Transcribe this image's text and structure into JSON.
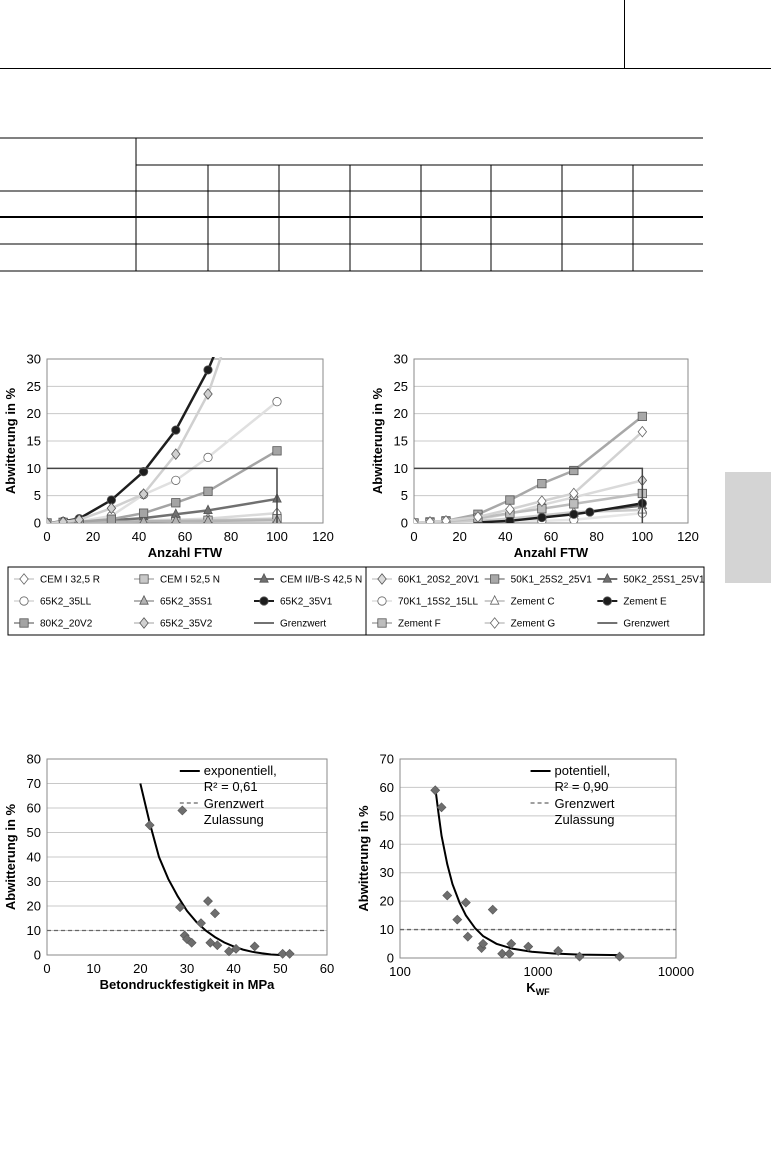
{
  "charts": [
    {
      "type": "line",
      "xlabel": "Anzahl FTW",
      "ylabel": "Abwitterung in %",
      "xlim": [
        0,
        120
      ],
      "ylim": [
        0,
        30
      ],
      "xticks": [
        0,
        20,
        40,
        60,
        80,
        100,
        120
      ],
      "yticks": [
        0,
        5,
        10,
        15,
        20,
        25,
        30
      ],
      "series": [
        {
          "name": "CEM I 32,5 R",
          "marker": "diamond-open",
          "color": "#dadada",
          "x": [
            0,
            7,
            14,
            28,
            42,
            56,
            70,
            100
          ],
          "y": [
            0,
            0.1,
            0.2,
            0.3,
            0.5,
            0.6,
            0.8,
            1.8
          ]
        },
        {
          "name": "CEM I 52,5 N",
          "marker": "square",
          "color": "#c8c8c8",
          "x": [
            0,
            7,
            14,
            28,
            42,
            56,
            70,
            100
          ],
          "y": [
            0,
            0.1,
            0.1,
            0.2,
            0.3,
            0.4,
            0.5,
            0.8
          ]
        },
        {
          "name": "CEM II/B-S 42,5 N",
          "marker": "triangle",
          "color": "#707070",
          "x": [
            0,
            7,
            14,
            28,
            42,
            56,
            70,
            100
          ],
          "y": [
            0,
            0.1,
            0.2,
            0.5,
            0.9,
            1.6,
            2.3,
            4.4
          ]
        },
        {
          "name": "65K2_35LL",
          "marker": "circle-open",
          "color": "#e0e0e0",
          "x": [
            0,
            7,
            14,
            28,
            42,
            56,
            70,
            100
          ],
          "y": [
            0,
            0.2,
            0.3,
            1.3,
            5.2,
            7.8,
            12,
            22.2
          ]
        },
        {
          "name": "65K2_35S1",
          "marker": "triangle",
          "color": "#b4b4b4",
          "x": [
            0,
            7,
            14,
            28,
            42,
            56,
            70,
            100
          ],
          "y": [
            0,
            0.1,
            0.1,
            0.2,
            0.3,
            0.4,
            0.4,
            0.5
          ]
        },
        {
          "name": "65K2_35V1",
          "marker": "circle",
          "color": "#1e1e1e",
          "x": [
            0,
            7,
            14,
            28,
            42,
            56,
            70,
            76
          ],
          "y": [
            0,
            0.3,
            0.8,
            4.2,
            9.4,
            17,
            28,
            34
          ]
        },
        {
          "name": "80K2_20V2",
          "marker": "square",
          "color": "#a4a4a4",
          "x": [
            0,
            7,
            14,
            28,
            42,
            56,
            70,
            100
          ],
          "y": [
            0,
            0.1,
            0.2,
            0.7,
            1.8,
            3.7,
            5.8,
            13.2
          ]
        },
        {
          "name": "65K2_35V2",
          "marker": "diamond",
          "color": "#d0d0d0",
          "x": [
            0,
            7,
            14,
            28,
            42,
            56,
            70,
            77
          ],
          "y": [
            0,
            0.2,
            0.6,
            2.7,
            5.3,
            12.6,
            23.6,
            32
          ]
        },
        {
          "name": "Grenzwert",
          "marker": "none",
          "color": "#444444",
          "x": [
            0,
            100,
            100
          ],
          "y": [
            10,
            10,
            0
          ]
        }
      ]
    },
    {
      "type": "line",
      "xlabel": "Anzahl FTW",
      "ylabel": "Abwitterung in %",
      "xlim": [
        0,
        120
      ],
      "ylim": [
        0,
        30
      ],
      "xticks": [
        0,
        20,
        40,
        60,
        80,
        100,
        120
      ],
      "yticks": [
        0,
        5,
        10,
        15,
        20,
        25,
        30
      ],
      "series": [
        {
          "name": "60K1_20S2_20V1",
          "marker": "diamond",
          "color": "#dadada",
          "x": [
            0,
            7,
            14,
            28,
            42,
            56,
            70,
            100
          ],
          "y": [
            0,
            0.2,
            0.3,
            0.7,
            1.7,
            3.3,
            4.7,
            7.8
          ]
        },
        {
          "name": "50K1_25S2_25V1",
          "marker": "square",
          "color": "#a8a8a8",
          "x": [
            0,
            7,
            14,
            28,
            42,
            56,
            70,
            100
          ],
          "y": [
            0,
            0.2,
            0.4,
            1.6,
            4.2,
            7.2,
            9.6,
            19.5
          ]
        },
        {
          "name": "50K2_25S1_25V1",
          "marker": "triangle",
          "color": "#707070",
          "x": [
            0,
            7,
            14,
            28,
            42,
            56,
            70,
            100
          ],
          "y": [
            0,
            0.1,
            0.1,
            0.2,
            0.5,
            1,
            1.8,
            3.2
          ]
        },
        {
          "name": "70K1_15S2_15LL",
          "marker": "circle-open",
          "color": "#e6e6e6",
          "x": [
            0,
            7,
            14,
            28,
            42,
            56,
            70,
            100
          ],
          "y": [
            0,
            0.1,
            0.1,
            0.2,
            0.3,
            0.4,
            0.6,
            1.8
          ]
        },
        {
          "name": "Zement C",
          "marker": "triangle-open",
          "color": "#cccccc",
          "x": [
            0,
            7,
            14,
            28,
            42,
            56,
            70,
            100
          ],
          "y": [
            0,
            0.1,
            0.2,
            0.4,
            0.8,
            1.4,
            2,
            2.4
          ]
        },
        {
          "name": "Zement E",
          "marker": "circle",
          "color": "#1e1e1e",
          "x": [
            28,
            42,
            56,
            70,
            77,
            100
          ],
          "y": [
            0.1,
            0.4,
            1,
            1.6,
            2,
            3.6
          ]
        },
        {
          "name": "Zement F",
          "marker": "square",
          "color": "#bdbdbd",
          "x": [
            0,
            7,
            14,
            28,
            42,
            56,
            70,
            100
          ],
          "y": [
            0,
            0.1,
            0.3,
            0.9,
            1.8,
            2.6,
            3.5,
            5.4
          ]
        },
        {
          "name": "Zement G",
          "marker": "diamond-open",
          "color": "#d2d2d2",
          "x": [
            0,
            7,
            14,
            28,
            42,
            56,
            70,
            100
          ],
          "y": [
            0,
            0.2,
            0.4,
            1.1,
            2.5,
            4,
            5.4,
            16.7
          ]
        },
        {
          "name": "Grenzwert",
          "marker": "none",
          "color": "#444444",
          "x": [
            0,
            100,
            100
          ],
          "y": [
            10,
            10,
            0
          ]
        }
      ]
    },
    {
      "type": "scatter",
      "xlabel": "Betondruckfestigkeit in MPa",
      "ylabel": "Abwitterung in %",
      "xlim": [
        0,
        60
      ],
      "ylim": [
        0,
        80
      ],
      "xticks": [
        0,
        10,
        20,
        30,
        40,
        50,
        60
      ],
      "yticks": [
        0,
        10,
        20,
        30,
        40,
        50,
        60,
        70,
        80
      ],
      "legend": [
        "exponentiell,",
        "R² = 0,61",
        "Grenzwert",
        "Zulassung"
      ],
      "points": [
        [
          22,
          53
        ],
        [
          29,
          59
        ],
        [
          28.5,
          19.5
        ],
        [
          29.5,
          8
        ],
        [
          30,
          6.5
        ],
        [
          31,
          5
        ],
        [
          33,
          13
        ],
        [
          34.5,
          22
        ],
        [
          35,
          5
        ],
        [
          36,
          17
        ],
        [
          36.5,
          4
        ],
        [
          39,
          1.5
        ],
        [
          40.5,
          2.5
        ],
        [
          44.5,
          3.5
        ],
        [
          50.5,
          0.5
        ],
        [
          52,
          0.5
        ]
      ],
      "fit": [
        [
          20,
          70
        ],
        [
          22,
          54
        ],
        [
          24,
          40
        ],
        [
          26,
          31
        ],
        [
          28,
          24
        ],
        [
          30,
          18
        ],
        [
          32,
          13.5
        ],
        [
          34,
          10
        ],
        [
          36,
          7.3
        ],
        [
          38,
          5.1
        ],
        [
          40,
          3.5
        ],
        [
          42,
          2.2
        ],
        [
          44,
          1.3
        ],
        [
          46,
          0.7
        ],
        [
          48,
          0.2
        ],
        [
          50,
          0
        ]
      ],
      "threshold": 10
    },
    {
      "type": "scatter",
      "xscale": "log",
      "xlabel": "KWF",
      "ylabel": "Abwitterung in %",
      "xlim": [
        100,
        10000
      ],
      "ylim": [
        0,
        70
      ],
      "xticks": [
        100,
        1000,
        10000
      ],
      "yticks": [
        0,
        10,
        20,
        30,
        40,
        50,
        60,
        70
      ],
      "legend": [
        "potentiell,",
        "R² = 0,90",
        "Grenzwert",
        "Zulassung"
      ],
      "points": [
        [
          180,
          59
        ],
        [
          200,
          53
        ],
        [
          220,
          22
        ],
        [
          260,
          13.5
        ],
        [
          300,
          19.5
        ],
        [
          310,
          7.5
        ],
        [
          390,
          3.5
        ],
        [
          400,
          5
        ],
        [
          470,
          17
        ],
        [
          550,
          1.5
        ],
        [
          620,
          1.5
        ],
        [
          640,
          5
        ],
        [
          850,
          4
        ],
        [
          1400,
          2.5
        ],
        [
          2000,
          0.5
        ],
        [
          3900,
          0.5
        ]
      ],
      "fit": [
        [
          180,
          60
        ],
        [
          190,
          51
        ],
        [
          200,
          43
        ],
        [
          220,
          33
        ],
        [
          240,
          26
        ],
        [
          270,
          19.5
        ],
        [
          300,
          15
        ],
        [
          350,
          10.5
        ],
        [
          400,
          7.7
        ],
        [
          500,
          5
        ],
        [
          650,
          3.3
        ],
        [
          900,
          2.2
        ],
        [
          1300,
          1.6
        ],
        [
          2000,
          1.2
        ],
        [
          4000,
          1
        ]
      ],
      "threshold": 10
    }
  ]
}
